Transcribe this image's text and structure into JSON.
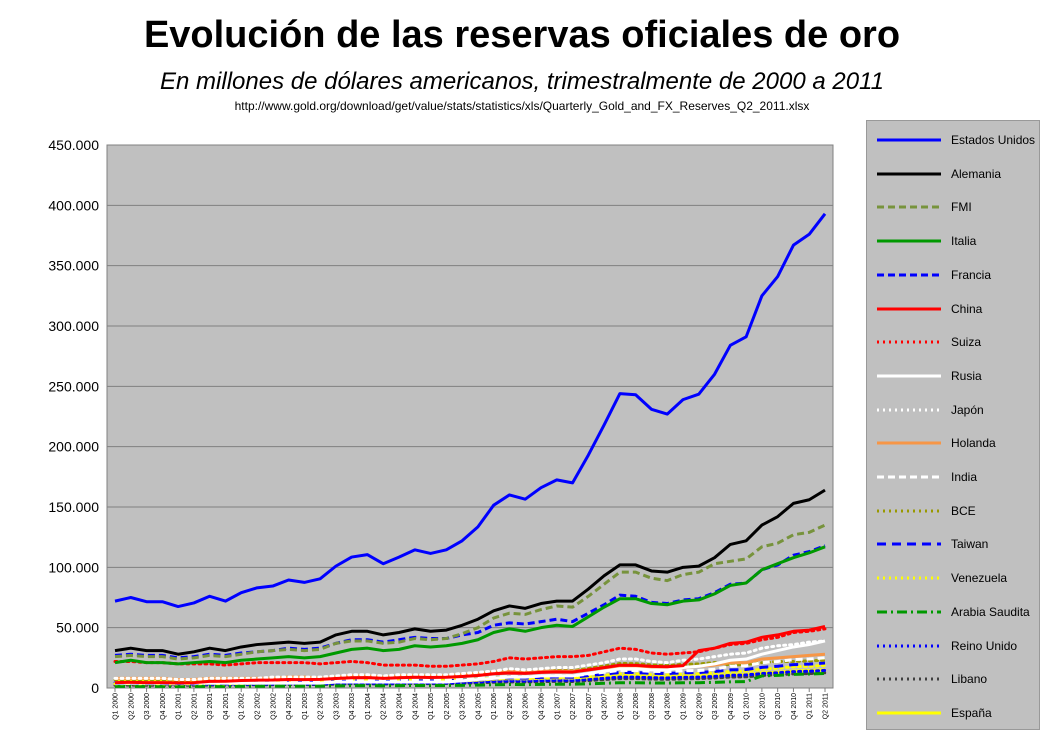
{
  "chart_data": {
    "type": "line",
    "title": "Evolución de las reservas oficiales de oro",
    "subtitle": "En millones de dólares americanos, trimestralmente de 2000 a 2011",
    "source": "http://www.gold.org/download/get/value/stats/statistics/xls/Quarterly_Gold_and_FX_Reserves_Q2_2011.xlsx",
    "xlabel": "",
    "ylabel": "",
    "ylim": [
      0,
      450000
    ],
    "yticks": [
      "0",
      "50.000",
      "100.000",
      "150.000",
      "200.000",
      "250.000",
      "300.000",
      "350.000",
      "400.000",
      "450.000"
    ],
    "grid": true,
    "legend": "right",
    "x": [
      "Q1 2000",
      "Q2 2000",
      "Q3 2000",
      "Q4 2000",
      "Q1 2001",
      "Q2 2001",
      "Q3 2001",
      "Q4 2001",
      "Q1 2002",
      "Q2 2002",
      "Q3 2002",
      "Q4 2002",
      "Q1 2003",
      "Q2 2003",
      "Q3 2003",
      "Q4 2003",
      "Q1 2004",
      "Q2 2004",
      "Q3 2004",
      "Q4 2004",
      "Q1 2005",
      "Q2 2005",
      "Q3 2005",
      "Q4 2005",
      "Q1 2006",
      "Q2 2006",
      "Q3 2006",
      "Q4 2006",
      "Q1 2007",
      "Q2 2007",
      "Q3 2007",
      "Q4 2007",
      "Q1 2008",
      "Q2 2008",
      "Q3 2008",
      "Q4 2008",
      "Q1 2009",
      "Q2 2009",
      "Q3 2009",
      "Q4 2009",
      "Q1 2010",
      "Q2 2010",
      "Q3 2010",
      "Q4 2010",
      "Q1 2011",
      "Q2 2011"
    ],
    "series": [
      {
        "name": "Estados Unidos",
        "color": "#0000ff",
        "style": "solid",
        "values": [
          72000,
          75000,
          71500,
          71500,
          67500,
          70500,
          76000,
          72000,
          79000,
          83000,
          84500,
          89500,
          87500,
          90500,
          101000,
          108500,
          110500,
          103000,
          108500,
          114500,
          111500,
          114500,
          122000,
          133500,
          151500,
          160000,
          156500,
          166000,
          172500,
          170000,
          193000,
          218000,
          244000,
          243000,
          231000,
          227000,
          239000,
          243500,
          260000,
          284000,
          291000,
          325000,
          341000,
          367000,
          376000,
          393000
        ]
      },
      {
        "name": "Alemania",
        "color": "#000000",
        "style": "solid",
        "values": [
          31000,
          33000,
          31000,
          31000,
          28000,
          30000,
          33000,
          31000,
          34000,
          36000,
          37000,
          38000,
          37000,
          38000,
          44000,
          47000,
          47000,
          44000,
          46000,
          49000,
          47000,
          48000,
          52000,
          57000,
          64000,
          68000,
          66000,
          70000,
          72000,
          72000,
          82000,
          93000,
          102000,
          102000,
          97000,
          96000,
          100000,
          101000,
          108000,
          119000,
          122000,
          135000,
          142000,
          153000,
          156000,
          164000
        ]
      },
      {
        "name": "FMI",
        "color": "#77933c",
        "style": "dash",
        "values": [
          26000,
          27000,
          26000,
          26000,
          24000,
          25000,
          27000,
          26000,
          28000,
          30000,
          31000,
          32000,
          31000,
          32000,
          37000,
          39000,
          39000,
          37000,
          38000,
          41000,
          40000,
          41000,
          45000,
          50000,
          58000,
          62000,
          61000,
          65000,
          68000,
          67000,
          76000,
          86000,
          96000,
          96000,
          91000,
          89000,
          94000,
          96000,
          103000,
          105000,
          107000,
          117000,
          120000,
          127000,
          129000,
          135000
        ]
      },
      {
        "name": "Italia",
        "color": "#009900",
        "style": "solid",
        "values": [
          21000,
          23000,
          21000,
          21000,
          20000,
          21000,
          22000,
          21000,
          23000,
          24000,
          25000,
          26000,
          25000,
          26000,
          29000,
          32000,
          33000,
          31000,
          32000,
          35000,
          34000,
          35000,
          37000,
          40000,
          46000,
          49000,
          47000,
          50000,
          52000,
          51000,
          59000,
          67000,
          74000,
          74000,
          70000,
          69000,
          72000,
          73000,
          78000,
          85000,
          87000,
          98000,
          103000,
          108000,
          112000,
          117000
        ]
      },
      {
        "name": "Francia",
        "color": "#0000ff",
        "style": "dash",
        "values": [
          27000,
          28000,
          27000,
          27000,
          25000,
          26000,
          28000,
          27000,
          29000,
          30000,
          31000,
          33000,
          32000,
          33000,
          37000,
          40000,
          40000,
          38000,
          40000,
          42000,
          41000,
          41000,
          44000,
          46000,
          52000,
          54000,
          53000,
          55000,
          57000,
          55000,
          62000,
          69000,
          77000,
          76000,
          71000,
          70000,
          73000,
          74000,
          79000,
          86000,
          87000,
          98000,
          102000,
          110000,
          113000,
          118000
        ]
      },
      {
        "name": "China",
        "color": "#ff0000",
        "style": "solid",
        "values": [
          4500,
          4700,
          4500,
          4500,
          4200,
          4400,
          5500,
          5600,
          6200,
          6500,
          6600,
          7000,
          6900,
          7100,
          7900,
          8500,
          8600,
          8000,
          8500,
          8900,
          8700,
          8900,
          9500,
          10400,
          11800,
          12400,
          12100,
          12900,
          13400,
          13200,
          15000,
          16900,
          18900,
          18800,
          17900,
          17600,
          18500,
          31000,
          33000,
          37000,
          38000,
          42000,
          44000,
          47000,
          48000,
          51000
        ]
      },
      {
        "name": "Suiza",
        "color": "#ff0000",
        "style": "dot",
        "values": [
          22000,
          22000,
          21000,
          21000,
          20000,
          20000,
          20000,
          19000,
          20000,
          21000,
          21000,
          21000,
          21000,
          20000,
          21000,
          22000,
          21000,
          19000,
          19000,
          19000,
          18000,
          18000,
          19000,
          20000,
          22000,
          25000,
          24000,
          25000,
          26000,
          26000,
          27000,
          30000,
          33000,
          32000,
          29000,
          28000,
          29000,
          30000,
          33000,
          36000,
          37000,
          40000,
          42000,
          46000,
          47000,
          49000
        ]
      },
      {
        "name": "Rusia",
        "color": "#ffffff",
        "style": "solid",
        "values": [
          4000,
          4000,
          4000,
          4000,
          4000,
          4000,
          4000,
          4000,
          4000,
          4000,
          4000,
          4000,
          4000,
          4000,
          5000,
          5000,
          5000,
          5000,
          5000,
          5000,
          5000,
          5000,
          6000,
          7000,
          8000,
          9000,
          9000,
          10000,
          10000,
          10000,
          12000,
          14000,
          16000,
          16000,
          15000,
          15000,
          17000,
          18000,
          20000,
          23000,
          24000,
          28000,
          31000,
          34000,
          36000,
          39000
        ]
      },
      {
        "name": "Japón",
        "color": "#ffffff",
        "style": "dot",
        "values": [
          8000,
          8000,
          8000,
          8000,
          7000,
          7000,
          8000,
          8000,
          8000,
          8000,
          9000,
          9000,
          9000,
          9000,
          10000,
          11000,
          11000,
          10000,
          11000,
          11000,
          11000,
          11000,
          12000,
          13000,
          14000,
          16000,
          15000,
          16000,
          17000,
          17000,
          19000,
          21000,
          24000,
          24000,
          22000,
          21000,
          23000,
          24000,
          26000,
          28000,
          29000,
          33000,
          35000,
          36000,
          38000,
          39000
        ]
      },
      {
        "name": "Holanda",
        "color": "#f79646",
        "style": "solid",
        "values": [
          8000,
          8000,
          8000,
          8000,
          7000,
          7000,
          8000,
          8000,
          8000,
          8000,
          8000,
          9000,
          9000,
          8000,
          9000,
          10000,
          10000,
          9000,
          10000,
          10000,
          10000,
          10000,
          11000,
          12000,
          13000,
          14000,
          13000,
          14000,
          14000,
          14000,
          15000,
          17000,
          18000,
          18000,
          17000,
          16000,
          17000,
          18000,
          19000,
          21000,
          21000,
          24000,
          25000,
          26000,
          27000,
          28000
        ]
      },
      {
        "name": "India",
        "color": "#ffffff",
        "style": "dash",
        "values": [
          4300,
          4500,
          4300,
          4300,
          4000,
          4200,
          4600,
          4300,
          4700,
          4900,
          5000,
          5300,
          5200,
          5400,
          6000,
          6500,
          6600,
          6100,
          6500,
          6800,
          6700,
          6800,
          7300,
          8000,
          9000,
          9500,
          9300,
          9900,
          10300,
          10100,
          11500,
          13000,
          14600,
          14500,
          13800,
          13500,
          14300,
          14500,
          15500,
          18000,
          18500,
          21000,
          22000,
          23500,
          24000,
          25000
        ]
      },
      {
        "name": "BCE",
        "color": "#999900",
        "style": "dot",
        "values": [
          7000,
          7000,
          7000,
          7000,
          6500,
          6800,
          7300,
          7000,
          7500,
          7800,
          8000,
          8300,
          8100,
          8300,
          9200,
          9800,
          9900,
          9200,
          9700,
          10100,
          9800,
          10000,
          10600,
          11500,
          13000,
          13700,
          13300,
          14200,
          14700,
          14400,
          16200,
          18200,
          20300,
          20200,
          19100,
          18700,
          19600,
          19900,
          21100,
          19000,
          19500,
          21000,
          22000,
          22000,
          22500,
          23000
        ]
      },
      {
        "name": "Taiwan",
        "color": "#0000ff",
        "style": "longdash",
        "values": [
          3800,
          3900,
          3800,
          3800,
          3600,
          3700,
          4000,
          3800,
          4200,
          4400,
          4400,
          4700,
          4600,
          4800,
          5300,
          5700,
          5800,
          5400,
          5700,
          6000,
          5900,
          6000,
          6400,
          7000,
          8000,
          8400,
          8200,
          8800,
          9100,
          8900,
          10200,
          11500,
          12900,
          12800,
          12200,
          12000,
          12600,
          12800,
          13700,
          15000,
          15300,
          17100,
          18000,
          19400,
          19800,
          20700
        ]
      },
      {
        "name": "Venezuela",
        "color": "#ffff00",
        "style": "dot",
        "values": [
          3500,
          3600,
          3500,
          3500,
          3300,
          3400,
          3700,
          3500,
          3800,
          4000,
          4100,
          4300,
          4200,
          4400,
          4900,
          5300,
          5300,
          5000,
          5300,
          5500,
          5400,
          5500,
          5900,
          6400,
          7300,
          7700,
          7500,
          8000,
          8300,
          8200,
          9300,
          10500,
          11700,
          11700,
          11100,
          10900,
          11500,
          11700,
          12500,
          13600,
          14000,
          15600,
          16400,
          17600,
          18000,
          18800
        ]
      },
      {
        "name": "Arabia Saudita",
        "color": "#009900",
        "style": "dashdot",
        "values": [
          1300,
          1400,
          1300,
          1300,
          1200,
          1300,
          1400,
          1300,
          1400,
          1500,
          1500,
          1600,
          1600,
          1600,
          1800,
          2000,
          2000,
          1900,
          2000,
          2100,
          2000,
          2100,
          2200,
          2400,
          2700,
          2900,
          2800,
          3000,
          3100,
          3100,
          3500,
          3900,
          4400,
          4400,
          4200,
          4100,
          4300,
          4400,
          4700,
          5100,
          5300,
          10000,
          10500,
          11300,
          11600,
          12100
        ]
      },
      {
        "name": "Reino Unido",
        "color": "#0000ff",
        "style": "dot",
        "values": [
          4200,
          4000,
          3600,
          3300,
          3000,
          2900,
          3000,
          2800,
          3000,
          3200,
          3200,
          3400,
          3300,
          3400,
          3800,
          4100,
          4100,
          3800,
          4000,
          4300,
          4100,
          4200,
          4500,
          5000,
          5600,
          5900,
          5800,
          6200,
          6400,
          6300,
          7100,
          8100,
          9000,
          9000,
          8600,
          8400,
          8900,
          9000,
          9600,
          10500,
          10800,
          12000,
          12600,
          13600,
          13900,
          14600
        ]
      },
      {
        "name": "Libano",
        "color": "#404040",
        "style": "dot",
        "values": [
          2300,
          2400,
          2300,
          2300,
          2200,
          2300,
          2400,
          2300,
          2500,
          2700,
          2700,
          2900,
          2800,
          2900,
          3200,
          3500,
          3500,
          3300,
          3500,
          3700,
          3600,
          3700,
          3900,
          4300,
          4800,
          5100,
          5000,
          5300,
          5500,
          5400,
          6200,
          7000,
          7800,
          7800,
          7400,
          7200,
          7600,
          7800,
          8300,
          9100,
          9300,
          10400,
          10900,
          11700,
          12000,
          12600
        ]
      },
      {
        "name": "España",
        "color": "#ffff00",
        "style": "solid",
        "values": [
          6000,
          6200,
          5900,
          5900,
          5300,
          5500,
          5900,
          5600,
          5700,
          5900,
          5600,
          5800,
          5700,
          5500,
          5700,
          6100,
          6100,
          5700,
          6000,
          6300,
          6100,
          6300,
          6700,
          7300,
          8300,
          8700,
          8500,
          9100,
          9400,
          9300,
          7400,
          8400,
          9400,
          9400,
          8900,
          8700,
          9200,
          9400,
          10000,
          10900,
          11200,
          12500,
          13100,
          14100,
          14500,
          15100
        ]
      }
    ]
  }
}
